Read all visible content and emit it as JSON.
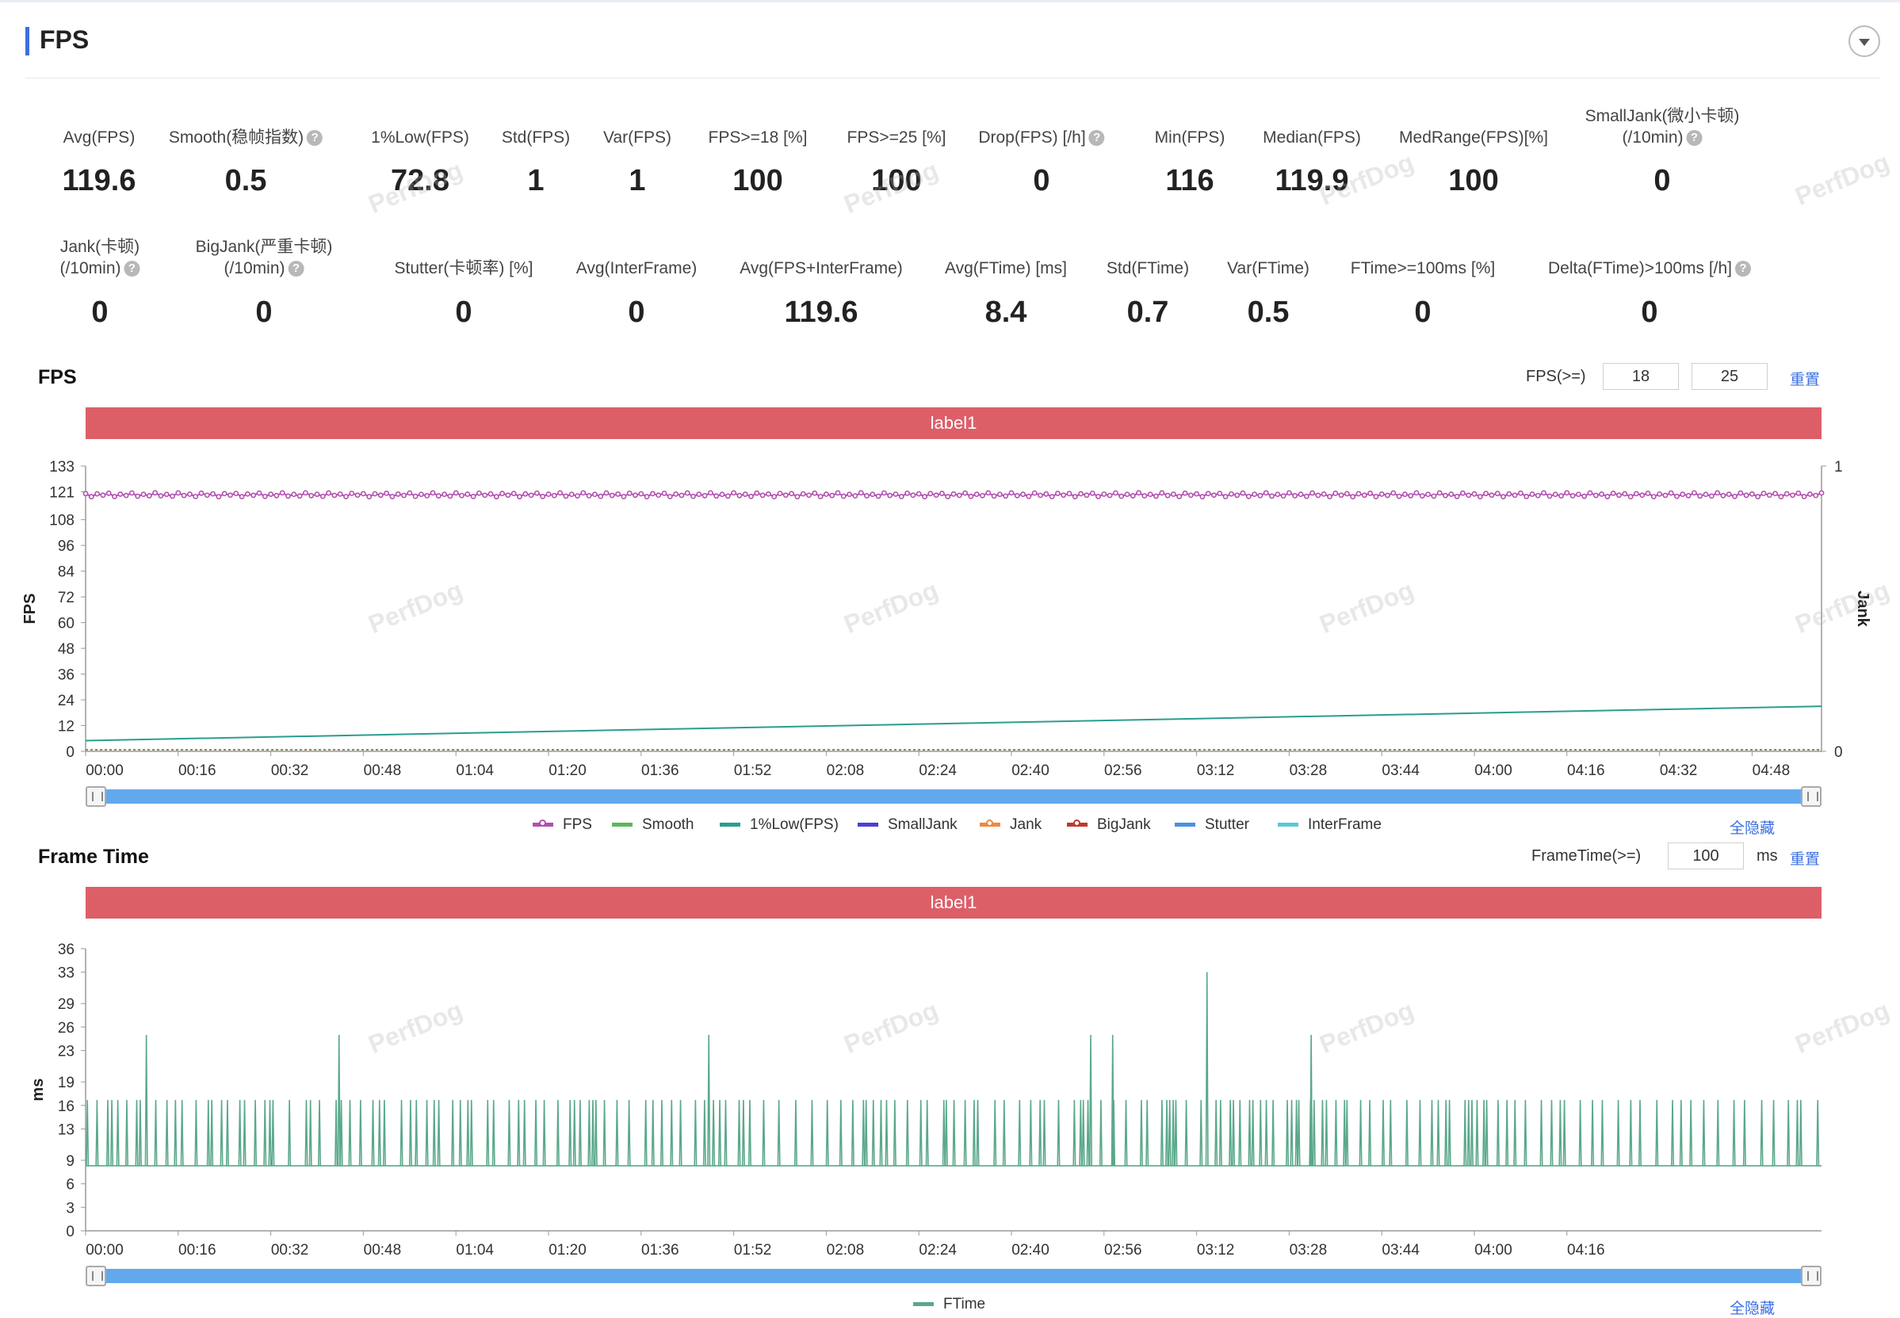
{
  "page": {
    "title": "FPS"
  },
  "metrics_row1": [
    {
      "label": "Avg(FPS)",
      "value": "119.6",
      "help": false
    },
    {
      "label": "Smooth(稳帧指数)",
      "value": "0.5",
      "help": true
    },
    {
      "label": "1%Low(FPS)",
      "value": "72.8",
      "help": false
    },
    {
      "label": "Std(FPS)",
      "value": "1",
      "help": false
    },
    {
      "label": "Var(FPS)",
      "value": "1",
      "help": false
    },
    {
      "label": "FPS>=18 [%]",
      "value": "100",
      "help": false
    },
    {
      "label": "FPS>=25 [%]",
      "value": "100",
      "help": false
    },
    {
      "label": "Drop(FPS) [/h]",
      "value": "0",
      "help": true
    },
    {
      "label": "Min(FPS)",
      "value": "116",
      "help": false
    },
    {
      "label": "Median(FPS)",
      "value": "119.9",
      "help": false
    },
    {
      "label": "MedRange(FPS)[%]",
      "value": "100",
      "help": false
    },
    {
      "label": "SmallJank(微小卡顿)",
      "label2": "(/10min)",
      "value": "0",
      "help": true
    }
  ],
  "metrics_row2": [
    {
      "label": "Jank(卡顿)",
      "label2": "(/10min)",
      "value": "0",
      "help": true
    },
    {
      "label": "BigJank(严重卡顿)",
      "label2": "(/10min)",
      "value": "0",
      "help": true
    },
    {
      "label": "Stutter(卡顿率) [%]",
      "value": "0",
      "help": false
    },
    {
      "label": "Avg(InterFrame)",
      "value": "0",
      "help": false
    },
    {
      "label": "Avg(FPS+InterFrame)",
      "value": "119.6",
      "help": false
    },
    {
      "label": "Avg(FTime) [ms]",
      "value": "8.4",
      "help": false
    },
    {
      "label": "Std(FTime)",
      "value": "0.7",
      "help": false
    },
    {
      "label": "Var(FTime)",
      "value": "0.5",
      "help": false
    },
    {
      "label": "FTime>=100ms [%]",
      "value": "0",
      "help": false
    },
    {
      "label": "Delta(FTime)>100ms [/h]",
      "value": "0",
      "help": true
    }
  ],
  "fps_section": {
    "title": "FPS",
    "threshold_label": "FPS(>=)",
    "threshold1": "18",
    "threshold2": "25",
    "reset": "重置",
    "band_label": "label1",
    "hide_all": "全隐藏",
    "legend": [
      {
        "name": "FPS",
        "color": "#b34fb0",
        "dot": true
      },
      {
        "name": "Smooth",
        "color": "#5cb85c",
        "dot": false
      },
      {
        "name": "1%Low(FPS)",
        "color": "#2a9d8f",
        "dot": false
      },
      {
        "name": "SmallJank",
        "color": "#4b3fd6",
        "dot": false
      },
      {
        "name": "Jank",
        "color": "#f0883e",
        "dot": true
      },
      {
        "name": "BigJank",
        "color": "#c0392b",
        "dot": true
      },
      {
        "name": "Stutter",
        "color": "#4a90e2",
        "dot": false
      },
      {
        "name": "InterFrame",
        "color": "#5bc8d6",
        "dot": false
      }
    ]
  },
  "frametime_section": {
    "title": "Frame Time",
    "threshold_label": "FrameTime(>=)",
    "threshold": "100",
    "unit": "ms",
    "reset": "重置",
    "band_label": "label1",
    "hide_all": "全隐藏",
    "legend": [
      {
        "name": "FTime",
        "color": "#5aa88a"
      }
    ]
  },
  "watermark": "PerfDog",
  "chart_data": [
    {
      "type": "line",
      "ylabel": "FPS",
      "y2label": "Jank",
      "ylim": [
        0,
        133
      ],
      "yticks": [
        0,
        12,
        24,
        36,
        48,
        60,
        72,
        84,
        96,
        108,
        121,
        133
      ],
      "y2ticks": [
        0,
        1
      ],
      "xlabels": [
        "00:00",
        "00:16",
        "00:32",
        "00:48",
        "01:04",
        "01:20",
        "01:36",
        "01:52",
        "02:08",
        "02:24",
        "02:40",
        "02:56",
        "03:12",
        "03:28",
        "03:44",
        "04:00",
        "04:16",
        "04:32",
        "04:48"
      ],
      "duration_s": 300,
      "series": [
        {
          "name": "FPS",
          "color": "#b34fb0",
          "approx_value": 119.6,
          "range": [
            116,
            121
          ]
        },
        {
          "name": "1%Low(FPS)",
          "color": "#2a9d8f",
          "start": 5,
          "end": 21
        }
      ]
    },
    {
      "type": "line",
      "ylabel": "ms",
      "ylim": [
        0,
        36
      ],
      "yticks": [
        0,
        3,
        6,
        9,
        13,
        16,
        19,
        23,
        26,
        29,
        33,
        36
      ],
      "xlabels": [
        "00:00",
        "00:16",
        "00:32",
        "00:48",
        "01:04",
        "01:20",
        "01:36",
        "01:52",
        "02:08",
        "02:24",
        "02:40",
        "02:56",
        "03:12",
        "03:28",
        "03:44",
        "04:00",
        "04:16"
      ],
      "duration_s": 300,
      "series": [
        {
          "name": "FTime",
          "color": "#5aa88a",
          "baseline": 8.3,
          "common_spike": 16.7,
          "big_spikes": [
            [
              10.5,
              25
            ],
            [
              43.8,
              25
            ],
            [
              107.7,
              25
            ],
            [
              173.7,
              25
            ],
            [
              177.5,
              25
            ],
            [
              193.8,
              33
            ],
            [
              211.8,
              25
            ]
          ]
        }
      ]
    }
  ]
}
